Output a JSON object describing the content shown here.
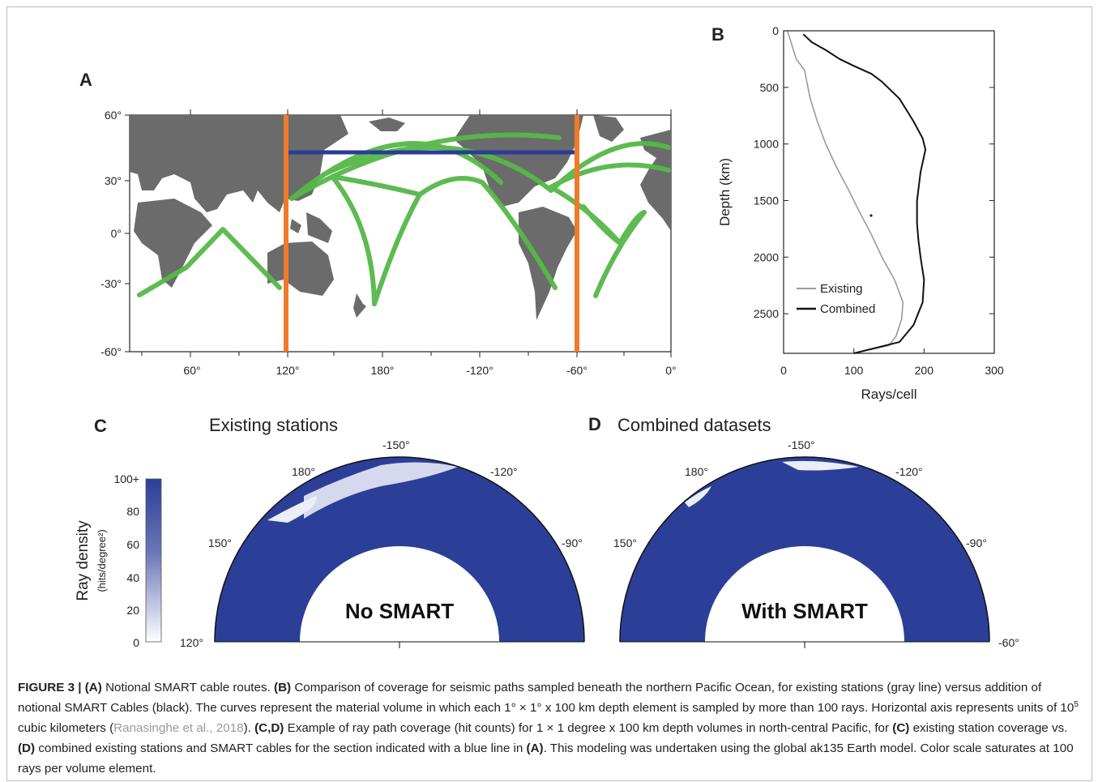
{
  "panels": {
    "a": {
      "letter": "A",
      "lat_ticks": [
        "60°",
        "30°",
        "0°",
        "-30°",
        "-60°"
      ],
      "lon_ticks": [
        "60°",
        "120°",
        "180°",
        "-120°",
        "-60°",
        "0°"
      ]
    },
    "b": {
      "letter": "B",
      "xlabel": "Rays/cell",
      "ylabel": "Depth (km)",
      "legend": [
        "Existing",
        "Combined"
      ]
    },
    "c": {
      "letter": "C",
      "title": "Existing stations",
      "overlay": "No SMART"
    },
    "d": {
      "letter": "D",
      "title": "Combined datasets",
      "overlay": "With SMART"
    }
  },
  "fan_labels": {
    "c": [
      "180°",
      "-150°",
      "-120°",
      "150°",
      "-90°",
      "120°"
    ],
    "d": [
      "180°",
      "-150°",
      "-120°",
      "150°",
      "-90°",
      "-60°"
    ]
  },
  "colorbar": {
    "title": "Ray density",
    "unit": "(hits/degree²)",
    "ticks": [
      "100+",
      "80",
      "60",
      "40",
      "20",
      "0"
    ],
    "color_max": "#2c3f98",
    "color_min": "#ffffff"
  },
  "colors": {
    "cable": "#55b848",
    "orange": "#f07a2a",
    "section": "#2b3b98",
    "land": "#6b6b6b"
  },
  "chart_data": {
    "type": "line",
    "xlabel": "Rays/cell",
    "ylabel": "Depth (km)",
    "xlim": [
      0,
      300
    ],
    "ylim": [
      2850,
      0
    ],
    "xticks": [
      0,
      100,
      200,
      300
    ],
    "yticks": [
      0,
      500,
      1000,
      1500,
      2000,
      2500
    ],
    "legend_position": "bottom-left",
    "series": [
      {
        "name": "Existing",
        "color": "#9a9a9a",
        "x": [
          5,
          8,
          12,
          18,
          30,
          33,
          38,
          48,
          60,
          75,
          92,
          108,
          125,
          140,
          158,
          170,
          168,
          160,
          150,
          100
        ],
        "y": [
          0,
          50,
          130,
          250,
          350,
          450,
          600,
          800,
          1000,
          1200,
          1400,
          1600,
          1800,
          2000,
          2200,
          2400,
          2550,
          2700,
          2780,
          2850
        ]
      },
      {
        "name": "Combined",
        "color": "#111111",
        "x": [
          28,
          40,
          60,
          80,
          100,
          125,
          140,
          165,
          185,
          198,
          202,
          195,
          190,
          190,
          192,
          195,
          200,
          198,
          185,
          165,
          100
        ],
        "y": [
          30,
          100,
          170,
          250,
          310,
          380,
          450,
          600,
          800,
          950,
          1050,
          1250,
          1500,
          1700,
          1850,
          2000,
          2200,
          2400,
          2600,
          2750,
          2850
        ]
      }
    ]
  },
  "caption": {
    "figure": "FIGURE 3 |",
    "a_tag": "(A)",
    "a_text": " Notional SMART cable routes. ",
    "b_tag": "(B)",
    "b_text": " Comparison of coverage for seismic paths sampled beneath the northern Pacific Ocean, for existing stations (gray line) versus addition of notional SMART Cables (black). The curves represent the material volume in which each 1° × 1° x 100 km depth element is sampled by more than 100 rays. Horizontal axis represents units of 10",
    "exp": "5",
    "b_text2": " cubic kilometers (",
    "ref": "Ranasinghe et al., 2018",
    "b_text3": "). ",
    "cd_tag": "(C,D)",
    "cd_text": " Example of ray path coverage (hit counts) for 1 × 1 degree x 100 km depth volumes in north-central Pacific, for ",
    "c_tag": "(C)",
    "c_text": " existing station coverage vs. ",
    "d_tag": "(D)",
    "d_text": " combined existing stations and SMART cables for the section indicated with a blue line in ",
    "a2_tag": "(A)",
    "end_text": ". This modeling was undertaken using the global ak135 Earth model. Color scale saturates at 100 rays per volume element."
  }
}
